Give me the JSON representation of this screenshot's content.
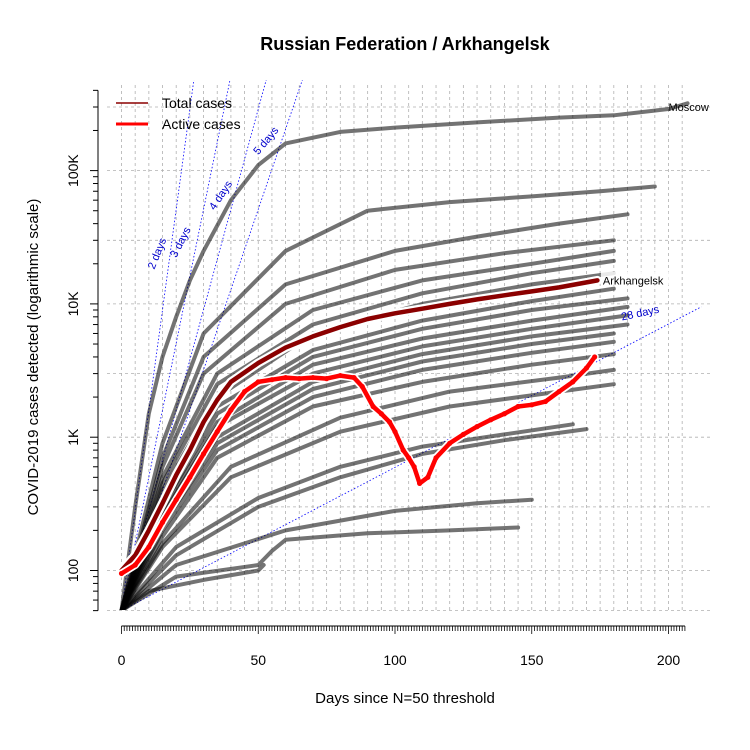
{
  "chart_data": {
    "type": "line",
    "title": "Russian Federation / Arkhangelsk",
    "xlabel": "Days since N=50 threshold",
    "ylabel": "COVID-2019 cases detected (logarithmic scale)",
    "y_scale": "log",
    "xlim": [
      0,
      210
    ],
    "ylim": [
      45,
      450000
    ],
    "x_ticks": [
      0,
      50,
      100,
      150,
      200
    ],
    "y_ticks": [
      {
        "value": 100,
        "label": "100"
      },
      {
        "value": 1000,
        "label": "1K"
      },
      {
        "value": 10000,
        "label": "10K"
      },
      {
        "value": 100000,
        "label": "100K"
      }
    ],
    "grid": true,
    "legend": {
      "placement": "top-left",
      "entries": [
        {
          "label": "Total cases",
          "color": "#8b0000"
        },
        {
          "label": "Active cases",
          "color": "#ff0000"
        }
      ]
    },
    "doubling_lines": [
      {
        "days": 2,
        "label": "2 days"
      },
      {
        "days": 3,
        "label": "3 days"
      },
      {
        "days": 4,
        "label": "4 days"
      },
      {
        "days": 5,
        "label": "5 days"
      },
      {
        "days": 28,
        "label": "28 days"
      }
    ],
    "background_series": [
      {
        "name": "Moscow",
        "points": [
          [
            0,
            50
          ],
          [
            5,
            300
          ],
          [
            10,
            1500
          ],
          [
            15,
            4000
          ],
          [
            20,
            8000
          ],
          [
            25,
            15000
          ],
          [
            30,
            25000
          ],
          [
            40,
            60000
          ],
          [
            50,
            110000
          ],
          [
            60,
            160000
          ],
          [
            80,
            195000
          ],
          [
            100,
            210000
          ],
          [
            130,
            230000
          ],
          [
            160,
            250000
          ],
          [
            180,
            260000
          ],
          [
            200,
            290000
          ],
          [
            207,
            320000
          ]
        ]
      },
      {
        "points": [
          [
            0,
            50
          ],
          [
            15,
            900
          ],
          [
            30,
            6000
          ],
          [
            60,
            25000
          ],
          [
            90,
            50000
          ],
          [
            120,
            58000
          ],
          [
            150,
            64000
          ],
          [
            175,
            70000
          ],
          [
            195,
            76000
          ]
        ]
      },
      {
        "points": [
          [
            0,
            50
          ],
          [
            15,
            700
          ],
          [
            30,
            4000
          ],
          [
            60,
            14000
          ],
          [
            100,
            25000
          ],
          [
            130,
            32000
          ],
          [
            160,
            40000
          ],
          [
            185,
            47000
          ]
        ]
      },
      {
        "points": [
          [
            0,
            50
          ],
          [
            15,
            600
          ],
          [
            30,
            3000
          ],
          [
            60,
            10000
          ],
          [
            100,
            18000
          ],
          [
            140,
            24000
          ],
          [
            180,
            30000
          ]
        ]
      },
      {
        "points": [
          [
            0,
            50
          ],
          [
            15,
            500
          ],
          [
            35,
            3000
          ],
          [
            70,
            9000
          ],
          [
            110,
            15000
          ],
          [
            150,
            20000
          ],
          [
            180,
            25000
          ]
        ]
      },
      {
        "points": [
          [
            0,
            50
          ],
          [
            15,
            450
          ],
          [
            35,
            2500
          ],
          [
            70,
            7000
          ],
          [
            110,
            12000
          ],
          [
            150,
            17000
          ],
          [
            180,
            21000
          ]
        ]
      },
      {
        "points": [
          [
            0,
            50
          ],
          [
            15,
            400
          ],
          [
            35,
            2000
          ],
          [
            70,
            6000
          ],
          [
            110,
            10000
          ],
          [
            150,
            14000
          ],
          [
            180,
            17000
          ]
        ]
      },
      {
        "points": [
          [
            0,
            50
          ],
          [
            15,
            350
          ],
          [
            35,
            1700
          ],
          [
            70,
            4500
          ],
          [
            110,
            7500
          ],
          [
            150,
            10500
          ],
          [
            180,
            13000
          ]
        ]
      },
      {
        "points": [
          [
            0,
            50
          ],
          [
            15,
            300
          ],
          [
            35,
            1500
          ],
          [
            70,
            4000
          ],
          [
            110,
            6500
          ],
          [
            150,
            9000
          ],
          [
            185,
            11000
          ]
        ]
      },
      {
        "points": [
          [
            0,
            50
          ],
          [
            15,
            280
          ],
          [
            35,
            1300
          ],
          [
            70,
            3500
          ],
          [
            110,
            5500
          ],
          [
            150,
            7500
          ],
          [
            185,
            9500
          ]
        ]
      },
      {
        "points": [
          [
            0,
            50
          ],
          [
            15,
            260
          ],
          [
            35,
            1200
          ],
          [
            70,
            3000
          ],
          [
            110,
            4800
          ],
          [
            150,
            6500
          ],
          [
            185,
            8200
          ]
        ]
      },
      {
        "points": [
          [
            0,
            50
          ],
          [
            15,
            240
          ],
          [
            35,
            1000
          ],
          [
            70,
            2600
          ],
          [
            110,
            4200
          ],
          [
            150,
            5700
          ],
          [
            185,
            7000
          ]
        ]
      },
      {
        "points": [
          [
            0,
            50
          ],
          [
            15,
            220
          ],
          [
            35,
            900
          ],
          [
            70,
            2300
          ],
          [
            110,
            3700
          ],
          [
            150,
            5000
          ],
          [
            180,
            6000
          ]
        ]
      },
      {
        "points": [
          [
            0,
            50
          ],
          [
            15,
            200
          ],
          [
            35,
            800
          ],
          [
            70,
            2000
          ],
          [
            110,
            3200
          ],
          [
            150,
            4300
          ],
          [
            180,
            5200
          ]
        ]
      },
      {
        "points": [
          [
            0,
            50
          ],
          [
            15,
            180
          ],
          [
            35,
            700
          ],
          [
            70,
            1700
          ],
          [
            110,
            2600
          ],
          [
            150,
            3500
          ],
          [
            180,
            4200
          ]
        ]
      },
      {
        "points": [
          [
            0,
            50
          ],
          [
            15,
            160
          ],
          [
            40,
            600
          ],
          [
            80,
            1400
          ],
          [
            120,
            2200
          ],
          [
            160,
            2800
          ],
          [
            180,
            3200
          ]
        ]
      },
      {
        "points": [
          [
            0,
            50
          ],
          [
            15,
            150
          ],
          [
            40,
            500
          ],
          [
            80,
            1100
          ],
          [
            120,
            1700
          ],
          [
            160,
            2200
          ],
          [
            180,
            2500
          ]
        ]
      },
      {
        "points": [
          [
            0,
            50
          ],
          [
            20,
            150
          ],
          [
            50,
            350
          ],
          [
            80,
            600
          ],
          [
            110,
            850
          ],
          [
            140,
            1050
          ],
          [
            165,
            1250
          ]
        ]
      },
      {
        "points": [
          [
            0,
            50
          ],
          [
            20,
            130
          ],
          [
            50,
            300
          ],
          [
            80,
            500
          ],
          [
            110,
            750
          ],
          [
            140,
            950
          ],
          [
            170,
            1150
          ]
        ]
      },
      {
        "points": [
          [
            0,
            50
          ],
          [
            20,
            110
          ],
          [
            60,
            200
          ],
          [
            100,
            280
          ],
          [
            130,
            320
          ],
          [
            150,
            340
          ]
        ]
      },
      {
        "points": [
          [
            0,
            50
          ],
          [
            20,
            90
          ],
          [
            50,
            110
          ],
          [
            55,
            140
          ],
          [
            60,
            170
          ],
          [
            90,
            190
          ],
          [
            120,
            200
          ],
          [
            145,
            210
          ]
        ]
      },
      {
        "points": [
          [
            0,
            50
          ],
          [
            10,
            70
          ],
          [
            30,
            85
          ],
          [
            50,
            100
          ],
          [
            52,
            110
          ]
        ]
      }
    ],
    "series": [
      {
        "name": "Arkhangelsk",
        "legend": "Total cases",
        "color": "#8b0000",
        "points": [
          [
            0,
            100
          ],
          [
            5,
            130
          ],
          [
            10,
            200
          ],
          [
            15,
            320
          ],
          [
            20,
            520
          ],
          [
            25,
            800
          ],
          [
            30,
            1300
          ],
          [
            35,
            1900
          ],
          [
            40,
            2600
          ],
          [
            50,
            3600
          ],
          [
            60,
            4700
          ],
          [
            70,
            5700
          ],
          [
            80,
            6700
          ],
          [
            90,
            7700
          ],
          [
            100,
            8500
          ],
          [
            110,
            9200
          ],
          [
            120,
            10000
          ],
          [
            130,
            10800
          ],
          [
            140,
            11600
          ],
          [
            150,
            12400
          ],
          [
            160,
            13300
          ],
          [
            170,
            14500
          ],
          [
            174,
            15000
          ]
        ]
      },
      {
        "legend": "Active cases",
        "color": "#ff0000",
        "points": [
          [
            0,
            95
          ],
          [
            5,
            110
          ],
          [
            10,
            150
          ],
          [
            15,
            230
          ],
          [
            20,
            340
          ],
          [
            25,
            500
          ],
          [
            30,
            750
          ],
          [
            35,
            1100
          ],
          [
            40,
            1600
          ],
          [
            45,
            2200
          ],
          [
            50,
            2600
          ],
          [
            55,
            2700
          ],
          [
            60,
            2800
          ],
          [
            65,
            2750
          ],
          [
            70,
            2800
          ],
          [
            75,
            2750
          ],
          [
            80,
            2900
          ],
          [
            85,
            2800
          ],
          [
            88,
            2400
          ],
          [
            92,
            1700
          ],
          [
            95,
            1500
          ],
          [
            98,
            1300
          ],
          [
            100,
            1100
          ],
          [
            103,
            800
          ],
          [
            105,
            700
          ],
          [
            107,
            600
          ],
          [
            109,
            450
          ],
          [
            112,
            500
          ],
          [
            115,
            700
          ],
          [
            120,
            900
          ],
          [
            125,
            1050
          ],
          [
            130,
            1200
          ],
          [
            135,
            1350
          ],
          [
            140,
            1500
          ],
          [
            145,
            1700
          ],
          [
            150,
            1750
          ],
          [
            155,
            1850
          ],
          [
            160,
            2200
          ],
          [
            165,
            2600
          ],
          [
            170,
            3300
          ],
          [
            173,
            4000
          ]
        ]
      }
    ],
    "annotations": [
      {
        "text": "Moscow",
        "x": 200,
        "y": 300000
      },
      {
        "text": "Arkhangelsk",
        "x": 176,
        "y": 15000
      }
    ]
  }
}
